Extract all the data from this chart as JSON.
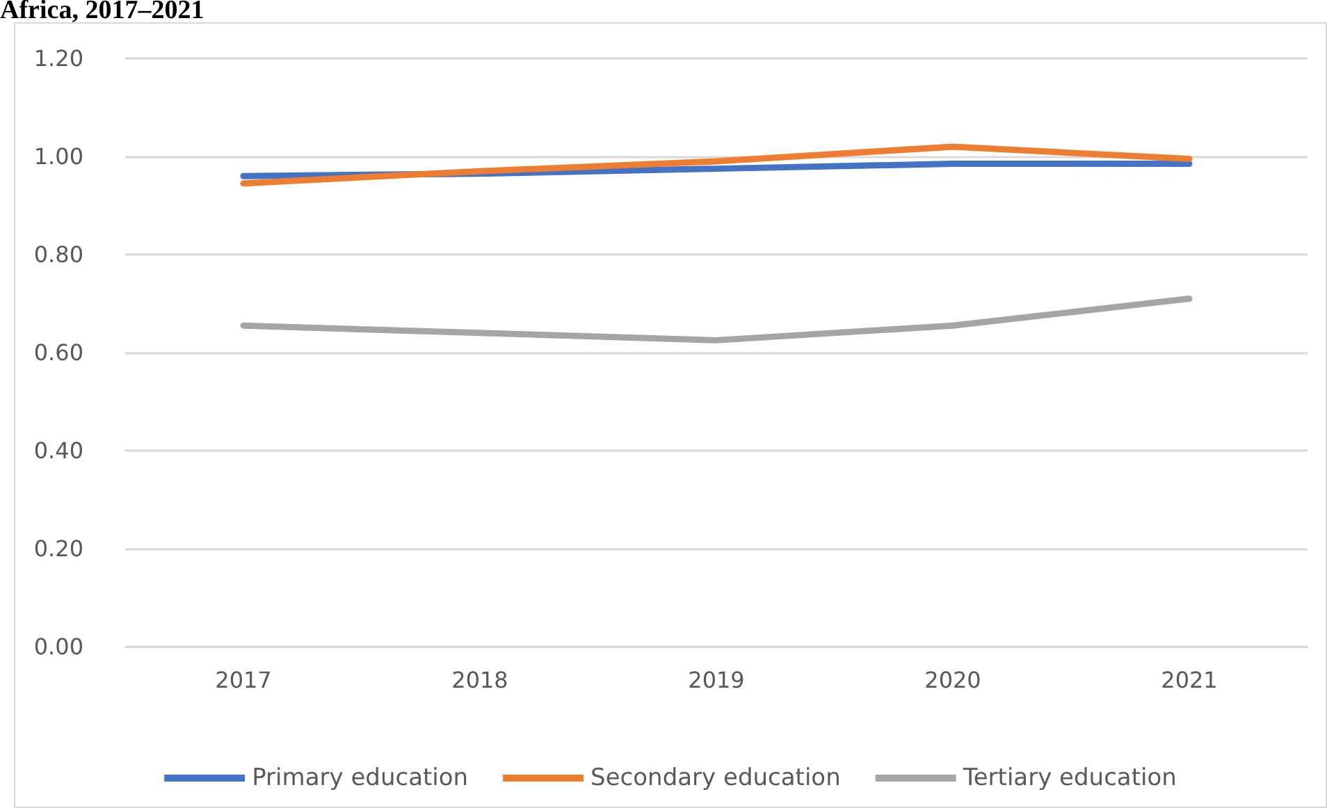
{
  "chart_data": {
    "type": "line",
    "title": "Africa, 2017–2021",
    "categories": [
      "2017",
      "2018",
      "2019",
      "2020",
      "2021"
    ],
    "series": [
      {
        "name": "Primary education",
        "color": "#4472c4",
        "values": [
          0.96,
          0.965,
          0.975,
          0.985,
          0.985
        ]
      },
      {
        "name": "Secondary education",
        "color": "#ed7d31",
        "values": [
          0.945,
          0.97,
          0.99,
          1.02,
          0.995
        ]
      },
      {
        "name": "Tertiary education",
        "color": "#a5a5a5",
        "values": [
          0.655,
          0.64,
          0.625,
          0.655,
          0.71
        ]
      }
    ],
    "ylim": [
      0,
      1.2
    ],
    "yticks": [
      {
        "value": 0,
        "label": "0.00"
      },
      {
        "value": 0.2,
        "label": "0.20"
      },
      {
        "value": 0.4,
        "label": "0.40"
      },
      {
        "value": 0.6,
        "label": "0.60"
      },
      {
        "value": 0.8,
        "label": "0.80"
      },
      {
        "value": 1.0,
        "label": "1.00"
      },
      {
        "value": 1.2,
        "label": "1.20"
      }
    ],
    "grid": "y",
    "legend": "bottom",
    "marker": "none",
    "line_style": "solid"
  }
}
